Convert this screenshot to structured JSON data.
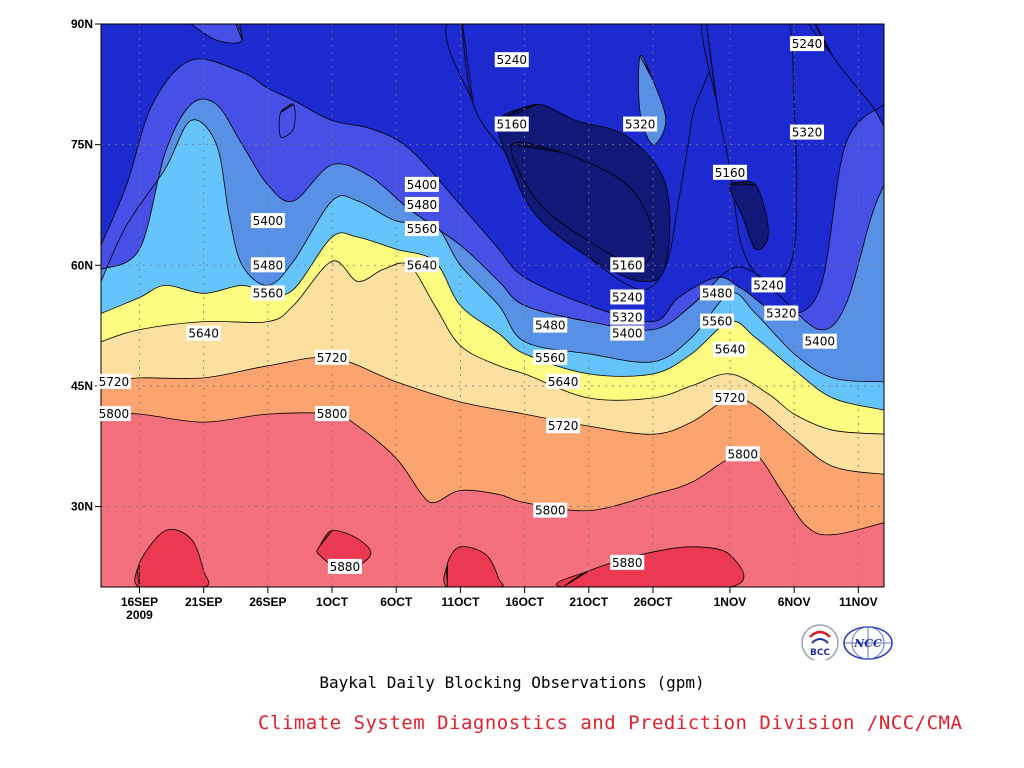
{
  "page": {
    "title": "Baykal Daily Blocking Observations (gpm)",
    "credit": "Climate System Diagnostics and Prediction Division /NCC/CMA",
    "logos": [
      {
        "name": "bcc-logo",
        "text": "BCC"
      },
      {
        "name": "ncc-logo",
        "text": "NCC"
      }
    ]
  },
  "chart_data": {
    "type": "heatmap",
    "title": "Baykal Daily Blocking Observations (gpm)",
    "xlabel": "",
    "ylabel": "",
    "x_range": [
      "2009-09-13",
      "2009-11-13"
    ],
    "y_range": [
      20,
      90
    ],
    "x_ticks": [
      {
        "date": "2009-09-16",
        "label": "16SEP",
        "sublabel": "2009"
      },
      {
        "date": "2009-09-21",
        "label": "21SEP"
      },
      {
        "date": "2009-09-26",
        "label": "26SEP"
      },
      {
        "date": "2009-10-01",
        "label": "1OCT"
      },
      {
        "date": "2009-10-06",
        "label": "6OCT"
      },
      {
        "date": "2009-10-11",
        "label": "11OCT"
      },
      {
        "date": "2009-10-16",
        "label": "16OCT"
      },
      {
        "date": "2009-10-21",
        "label": "21OCT"
      },
      {
        "date": "2009-10-26",
        "label": "26OCT"
      },
      {
        "date": "2009-11-01",
        "label": "1NOV"
      },
      {
        "date": "2009-11-06",
        "label": "6NOV"
      },
      {
        "date": "2009-11-11",
        "label": "11NOV"
      }
    ],
    "y_ticks": [
      {
        "lat": 30,
        "label": "30N"
      },
      {
        "lat": 45,
        "label": "45N"
      },
      {
        "lat": 60,
        "label": "60N"
      },
      {
        "lat": 75,
        "label": "75N"
      },
      {
        "lat": 90,
        "label": "90N"
      }
    ],
    "grid": true,
    "levels": [
      {
        "value": 5160,
        "color": "#101878"
      },
      {
        "value": 5240,
        "color": "#1c2ad0"
      },
      {
        "value": 5320,
        "color": "#4650e6"
      },
      {
        "value": 5400,
        "color": "#5890e6"
      },
      {
        "value": 5480,
        "color": "#66c4fc"
      },
      {
        "value": 5560,
        "color": "#fcfc80"
      },
      {
        "value": 5640,
        "color": "#fce0a0"
      },
      {
        "value": 5720,
        "color": "#fca470"
      },
      {
        "value": 5800,
        "color": "#fc7848"
      },
      {
        "value": 5880,
        "color": "#f4707c"
      },
      {
        "value": 5960,
        "color": "#ec3850"
      }
    ],
    "contours": [
      {
        "value": 5800,
        "points": [
          [
            "2009-09-13",
            41.5
          ],
          [
            "2009-09-16",
            41.5
          ],
          [
            "2009-09-21",
            40.5
          ],
          [
            "2009-09-26",
            41.5
          ],
          [
            "2009-10-01",
            41.5
          ],
          [
            "2009-10-03",
            40.0
          ],
          [
            "2009-10-06",
            36.0
          ],
          [
            "2009-10-08",
            31.5
          ],
          [
            "2009-10-09",
            30.5
          ],
          [
            "2009-10-11",
            32.0
          ],
          [
            "2009-10-14",
            31.5
          ],
          [
            "2009-10-16",
            30.5
          ],
          [
            "2009-10-21",
            29.5
          ],
          [
            "2009-10-26",
            31.5
          ],
          [
            "2009-10-29",
            33.0
          ],
          [
            "2009-11-01",
            36.0
          ],
          [
            "2009-11-03",
            36.5
          ],
          [
            "2009-11-05",
            32.0
          ],
          [
            "2009-11-07",
            27.5
          ],
          [
            "2009-11-09",
            26.5
          ],
          [
            "2009-11-13",
            28.0
          ]
        ]
      },
      {
        "value": 5720,
        "points": [
          [
            "2009-09-13",
            45.5
          ],
          [
            "2009-09-16",
            46.0
          ],
          [
            "2009-09-21",
            46.0
          ],
          [
            "2009-09-26",
            47.5
          ],
          [
            "2009-10-01",
            48.5
          ],
          [
            "2009-10-06",
            45.5
          ],
          [
            "2009-10-11",
            43.0
          ],
          [
            "2009-10-16",
            41.5
          ],
          [
            "2009-10-21",
            40.0
          ],
          [
            "2009-10-26",
            39.0
          ],
          [
            "2009-10-29",
            40.5
          ],
          [
            "2009-11-01",
            43.5
          ],
          [
            "2009-11-03",
            42.5
          ],
          [
            "2009-11-06",
            38.5
          ],
          [
            "2009-11-09",
            35.0
          ],
          [
            "2009-11-13",
            34.0
          ]
        ]
      },
      {
        "value": 5640,
        "points": [
          [
            "2009-09-13",
            50.5
          ],
          [
            "2009-09-16",
            52.0
          ],
          [
            "2009-09-21",
            53.0
          ],
          [
            "2009-09-26",
            53.0
          ],
          [
            "2009-09-28",
            55.0
          ],
          [
            "2009-10-01",
            60.5
          ],
          [
            "2009-10-03",
            58.0
          ],
          [
            "2009-10-05",
            59.5
          ],
          [
            "2009-10-07",
            60.0
          ],
          [
            "2009-10-09",
            55.0
          ],
          [
            "2009-10-11",
            50.0
          ],
          [
            "2009-10-14",
            47.5
          ],
          [
            "2009-10-16",
            46.5
          ],
          [
            "2009-10-21",
            43.5
          ],
          [
            "2009-10-26",
            43.5
          ],
          [
            "2009-10-29",
            45.0
          ],
          [
            "2009-11-01",
            46.5
          ],
          [
            "2009-11-04",
            44.0
          ],
          [
            "2009-11-06",
            41.5
          ],
          [
            "2009-11-09",
            39.5
          ],
          [
            "2009-11-13",
            39.0
          ]
        ]
      },
      {
        "value": 5560,
        "points": [
          [
            "2009-09-13",
            54.0
          ],
          [
            "2009-09-16",
            56.0
          ],
          [
            "2009-09-18",
            57.5
          ],
          [
            "2009-09-21",
            56.5
          ],
          [
            "2009-09-24",
            57.5
          ],
          [
            "2009-09-26",
            56.5
          ],
          [
            "2009-09-28",
            57.0
          ],
          [
            "2009-10-01",
            63.5
          ],
          [
            "2009-10-03",
            63.5
          ],
          [
            "2009-10-06",
            62.0
          ],
          [
            "2009-10-09",
            60.5
          ],
          [
            "2009-10-11",
            55.0
          ],
          [
            "2009-10-14",
            51.5
          ],
          [
            "2009-10-16",
            49.0
          ],
          [
            "2009-10-21",
            46.5
          ],
          [
            "2009-10-26",
            46.5
          ],
          [
            "2009-10-29",
            49.0
          ],
          [
            "2009-11-01",
            53.0
          ],
          [
            "2009-11-03",
            51.0
          ],
          [
            "2009-11-06",
            47.0
          ],
          [
            "2009-11-09",
            43.5
          ],
          [
            "2009-11-13",
            42.0
          ]
        ]
      },
      {
        "value": 5480,
        "points": [
          [
            "2009-09-13",
            58.0
          ],
          [
            "2009-09-15",
            65.0
          ],
          [
            "2009-09-18",
            72.0
          ],
          [
            "2009-09-20",
            78.0
          ],
          [
            "2009-09-22",
            75.0
          ],
          [
            "2009-09-23",
            66.0
          ],
          [
            "2009-09-24",
            60.0
          ],
          [
            "2009-09-26",
            57.5
          ],
          [
            "2009-09-28",
            60.5
          ],
          [
            "2009-10-01",
            68.0
          ],
          [
            "2009-10-03",
            68.0
          ],
          [
            "2009-10-06",
            65.5
          ],
          [
            "2009-10-09",
            65.0
          ],
          [
            "2009-10-11",
            60.0
          ],
          [
            "2009-10-14",
            55.0
          ],
          [
            "2009-10-16",
            50.5
          ],
          [
            "2009-10-21",
            49.0
          ],
          [
            "2009-10-26",
            48.0
          ],
          [
            "2009-10-29",
            51.0
          ],
          [
            "2009-11-01",
            56.5
          ],
          [
            "2009-11-03",
            54.0
          ],
          [
            "2009-11-06",
            49.0
          ],
          [
            "2009-11-09",
            46.0
          ],
          [
            "2009-11-13",
            45.5
          ]
        ]
      },
      {
        "value": 5400,
        "points": [
          [
            "2009-09-13",
            59.5
          ],
          [
            "2009-09-16",
            62.0
          ],
          [
            "2009-09-18",
            74.0
          ],
          [
            "2009-09-20",
            80.0
          ],
          [
            "2009-09-22",
            80.0
          ],
          [
            "2009-09-24",
            75.0
          ],
          [
            "2009-09-26",
            70.0
          ],
          [
            "2009-09-28",
            68.0
          ],
          [
            "2009-10-01",
            72.5
          ],
          [
            "2009-10-04",
            71.0
          ],
          [
            "2009-10-07",
            67.0
          ],
          [
            "2009-10-11",
            62.5
          ],
          [
            "2009-10-14",
            58.0
          ],
          [
            "2009-10-16",
            55.0
          ],
          [
            "2009-10-21",
            53.0
          ],
          [
            "2009-10-26",
            52.0
          ],
          [
            "2009-10-29",
            55.0
          ],
          [
            "2009-11-01",
            59.5
          ],
          [
            "2009-11-03",
            59.0
          ],
          [
            "2009-11-05",
            56.0
          ],
          [
            "2009-11-08",
            52.0
          ],
          [
            "2009-11-10",
            55.0
          ],
          [
            "2009-11-12",
            66.0
          ],
          [
            "2009-11-13",
            70.0
          ]
        ]
      },
      {
        "value": 5320,
        "points": [
          [
            "2009-09-13",
            62.5
          ],
          [
            "2009-09-15",
            70.0
          ],
          [
            "2009-09-17",
            80.0
          ],
          [
            "2009-09-20",
            85.5
          ],
          [
            "2009-09-24",
            84.0
          ],
          [
            "2009-09-26",
            82.0
          ],
          [
            "2009-09-28",
            80.5
          ],
          [
            "2009-10-01",
            78.0
          ],
          [
            "2009-10-04",
            77.0
          ],
          [
            "2009-10-07",
            74.5
          ],
          [
            "2009-10-11",
            67.5
          ],
          [
            "2009-10-14",
            62.0
          ],
          [
            "2009-10-16",
            58.5
          ],
          [
            "2009-10-21",
            55.0
          ],
          [
            "2009-10-26",
            53.0
          ],
          [
            "2009-10-28",
            56.0
          ],
          [
            "2009-10-31",
            58.5
          ],
          [
            "2009-11-02",
            57.0
          ],
          [
            "2009-11-05",
            54.0
          ],
          [
            "2009-11-08",
            57.0
          ],
          [
            "2009-11-10",
            75.0
          ],
          [
            "2009-11-13",
            80.0
          ]
        ]
      }
    ],
    "labels": [
      {
        "date": "2009-09-14",
        "lat": 45.5,
        "text": "5720"
      },
      {
        "date": "2009-09-14",
        "lat": 41.5,
        "text": "5800"
      },
      {
        "date": "2009-09-21",
        "lat": 51.5,
        "text": "5640"
      },
      {
        "date": "2009-09-26",
        "lat": 56.5,
        "text": "5560"
      },
      {
        "date": "2009-09-26",
        "lat": 60.0,
        "text": "5480"
      },
      {
        "date": "2009-09-26",
        "lat": 65.5,
        "text": "5400"
      },
      {
        "date": "2009-10-01",
        "lat": 48.5,
        "text": "5720"
      },
      {
        "date": "2009-10-01",
        "lat": 41.5,
        "text": "5800"
      },
      {
        "date": "2009-10-02",
        "lat": 22.5,
        "text": "5880"
      },
      {
        "date": "2009-10-08",
        "lat": 60.0,
        "text": "5640"
      },
      {
        "date": "2009-10-08",
        "lat": 64.5,
        "text": "5560"
      },
      {
        "date": "2009-10-08",
        "lat": 67.5,
        "text": "5480"
      },
      {
        "date": "2009-10-08",
        "lat": 70.0,
        "text": "5400"
      },
      {
        "date": "2009-10-15",
        "lat": 85.5,
        "text": "5240"
      },
      {
        "date": "2009-10-15",
        "lat": 77.5,
        "text": "5160"
      },
      {
        "date": "2009-10-18",
        "lat": 52.5,
        "text": "5480"
      },
      {
        "date": "2009-10-18",
        "lat": 48.5,
        "text": "5560"
      },
      {
        "date": "2009-10-19",
        "lat": 45.5,
        "text": "5640"
      },
      {
        "date": "2009-10-19",
        "lat": 40.0,
        "text": "5720"
      },
      {
        "date": "2009-10-18",
        "lat": 29.5,
        "text": "5800"
      },
      {
        "date": "2009-10-25",
        "lat": 77.5,
        "text": "5320"
      },
      {
        "date": "2009-10-24",
        "lat": 60.0,
        "text": "5160"
      },
      {
        "date": "2009-10-24",
        "lat": 56.0,
        "text": "5240"
      },
      {
        "date": "2009-10-24",
        "lat": 53.5,
        "text": "5320"
      },
      {
        "date": "2009-10-24",
        "lat": 51.5,
        "text": "5400"
      },
      {
        "date": "2009-10-24",
        "lat": 23.0,
        "text": "5880"
      },
      {
        "date": "2009-10-31",
        "lat": 56.5,
        "text": "5480"
      },
      {
        "date": "2009-10-31",
        "lat": 53.0,
        "text": "5560"
      },
      {
        "date": "2009-11-01",
        "lat": 49.5,
        "text": "5640"
      },
      {
        "date": "2009-11-01",
        "lat": 43.5,
        "text": "5720"
      },
      {
        "date": "2009-11-02",
        "lat": 36.5,
        "text": "5800"
      },
      {
        "date": "2009-11-01",
        "lat": 71.5,
        "text": "5160"
      },
      {
        "date": "2009-11-04",
        "lat": 57.5,
        "text": "5240"
      },
      {
        "date": "2009-11-05",
        "lat": 54.0,
        "text": "5320"
      },
      {
        "date": "2009-11-07",
        "lat": 87.5,
        "text": "5240"
      },
      {
        "date": "2009-11-07",
        "lat": 76.5,
        "text": "5320"
      },
      {
        "date": "2009-11-08",
        "lat": 50.5,
        "text": "5400"
      }
    ]
  }
}
